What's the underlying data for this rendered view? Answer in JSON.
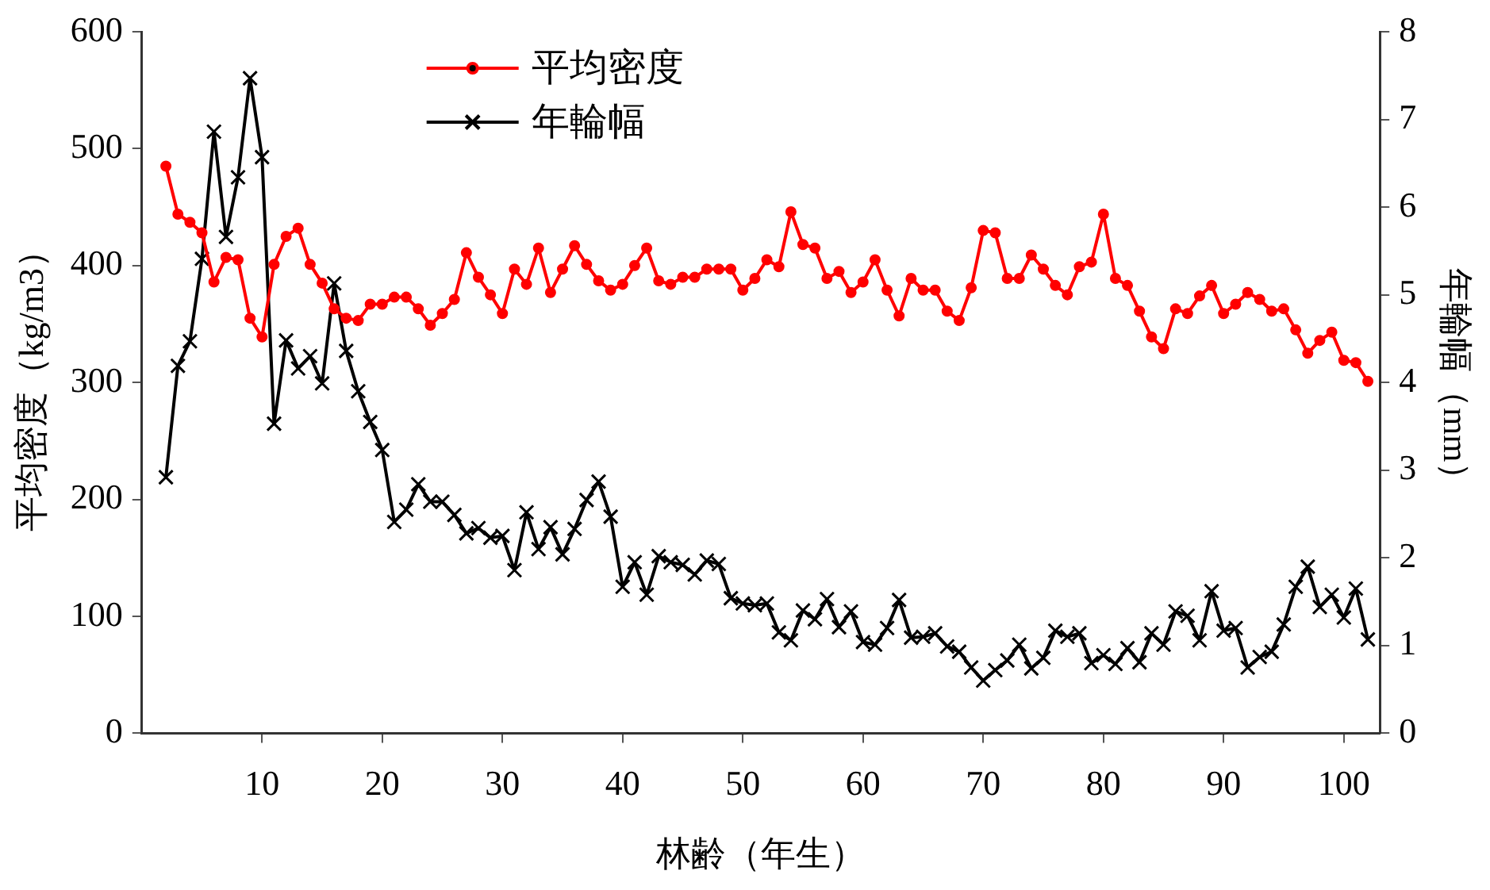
{
  "chart_data": {
    "type": "line",
    "xlabel": "林齢（年生）",
    "ylabel": "平均密度（kg/m3）",
    "y2label": "年輪幅（mm）",
    "x": [
      2,
      3,
      4,
      5,
      6,
      7,
      8,
      9,
      10,
      11,
      12,
      13,
      14,
      15,
      16,
      17,
      18,
      19,
      20,
      21,
      22,
      23,
      24,
      25,
      26,
      27,
      28,
      29,
      30,
      31,
      32,
      33,
      34,
      35,
      36,
      37,
      38,
      39,
      40,
      41,
      42,
      43,
      44,
      45,
      46,
      47,
      48,
      49,
      50,
      51,
      52,
      53,
      54,
      55,
      56,
      57,
      58,
      59,
      60,
      61,
      62,
      63,
      64,
      65,
      66,
      67,
      68,
      69,
      70,
      71,
      72,
      73,
      74,
      75,
      76,
      77,
      78,
      79,
      80,
      81,
      82,
      83,
      84,
      85,
      86,
      87,
      88,
      89,
      90,
      91,
      92,
      93,
      94,
      95,
      96,
      97,
      98,
      99,
      100,
      101,
      102
    ],
    "series": [
      {
        "name": "平均密度",
        "color": "#ff0000",
        "marker": "circle",
        "values": [
          485,
          444,
          437,
          428,
          386,
          407,
          405,
          355,
          339,
          401,
          425,
          432,
          401,
          385,
          363,
          355,
          353,
          367,
          367,
          373,
          373,
          363,
          349,
          359,
          371,
          411,
          390,
          375,
          359,
          397,
          384,
          415,
          377,
          397,
          417,
          401,
          387,
          379,
          384,
          400,
          415,
          387,
          384,
          390,
          390,
          397,
          397,
          397,
          379,
          389,
          405,
          399,
          446,
          418,
          415,
          389,
          395,
          377,
          386,
          405,
          379,
          357,
          389,
          379,
          379,
          361,
          353,
          381,
          430,
          428,
          389,
          389,
          409,
          397,
          383,
          375,
          399,
          403,
          444,
          389,
          383,
          361,
          339,
          329,
          363,
          359,
          374,
          383,
          359,
          367,
          377,
          371,
          361,
          363,
          345,
          325,
          336,
          343,
          319,
          317,
          301
        ]
      },
      {
        "name": "年輪幅",
        "color": "#000000",
        "marker": "cross",
        "axis": "y2",
        "values": [
          2.92,
          4.19,
          4.47,
          5.41,
          6.86,
          5.66,
          6.34,
          7.47,
          6.57,
          3.53,
          4.48,
          4.16,
          4.3,
          3.99,
          5.13,
          4.36,
          3.9,
          3.55,
          3.23,
          2.41,
          2.55,
          2.84,
          2.64,
          2.64,
          2.49,
          2.28,
          2.34,
          2.23,
          2.25,
          1.86,
          2.52,
          2.1,
          2.35,
          2.04,
          2.33,
          2.66,
          2.87,
          2.47,
          1.67,
          1.95,
          1.58,
          2.02,
          1.95,
          1.92,
          1.81,
          1.97,
          1.93,
          1.54,
          1.48,
          1.46,
          1.48,
          1.15,
          1.06,
          1.4,
          1.3,
          1.53,
          1.21,
          1.39,
          1.04,
          1.01,
          1.2,
          1.52,
          1.09,
          1.1,
          1.14,
          0.99,
          0.93,
          0.75,
          0.6,
          0.72,
          0.83,
          1.01,
          0.74,
          0.86,
          1.17,
          1.1,
          1.14,
          0.8,
          0.89,
          0.79,
          0.97,
          0.81,
          1.14,
          1.01,
          1.39,
          1.34,
          1.06,
          1.62,
          1.17,
          1.2,
          0.75,
          0.87,
          0.93,
          1.24,
          1.67,
          1.9,
          1.44,
          1.58,
          1.32,
          1.65,
          1.07
        ]
      }
    ],
    "xlim": [
      0,
      103
    ],
    "xticks": [
      10,
      20,
      30,
      40,
      50,
      60,
      70,
      80,
      90,
      100
    ],
    "ylim": [
      0,
      600
    ],
    "yticks": [
      0,
      100,
      200,
      300,
      400,
      500,
      600
    ],
    "y2lim": [
      0,
      8
    ],
    "y2ticks": [
      0,
      1,
      2,
      3,
      4,
      5,
      6,
      7,
      8
    ],
    "grid": false,
    "legend": "top",
    "line_style": "solid"
  }
}
